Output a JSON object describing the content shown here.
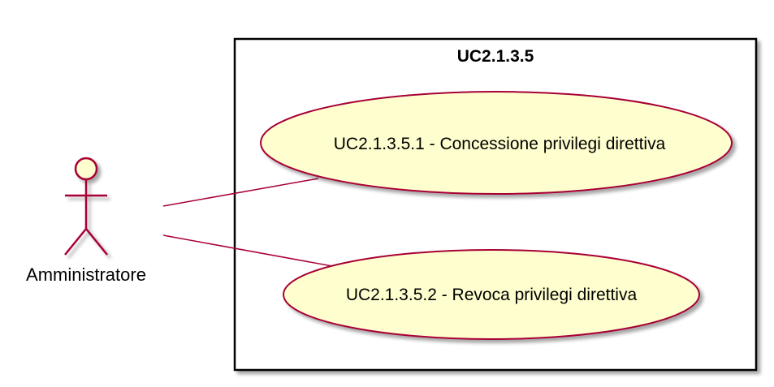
{
  "diagram": {
    "type": "use-case",
    "system": {
      "title": "UC2.1.3.5"
    },
    "actor": {
      "name": "Amministratore"
    },
    "use_cases": [
      {
        "label": "UC2.1.3.5.1 - Concessione privilegi direttiva"
      },
      {
        "label": "UC2.1.3.5.2 - Revoca privilegi direttiva"
      }
    ],
    "colors": {
      "actor_fill": "#FEFECE",
      "actor_stroke": "#A80036",
      "usecase_fill": "#FEFECE",
      "usecase_stroke": "#A80036",
      "association_line": "#A80036",
      "boundary_stroke": "#000000",
      "shadow": "#C8C8C8"
    }
  }
}
